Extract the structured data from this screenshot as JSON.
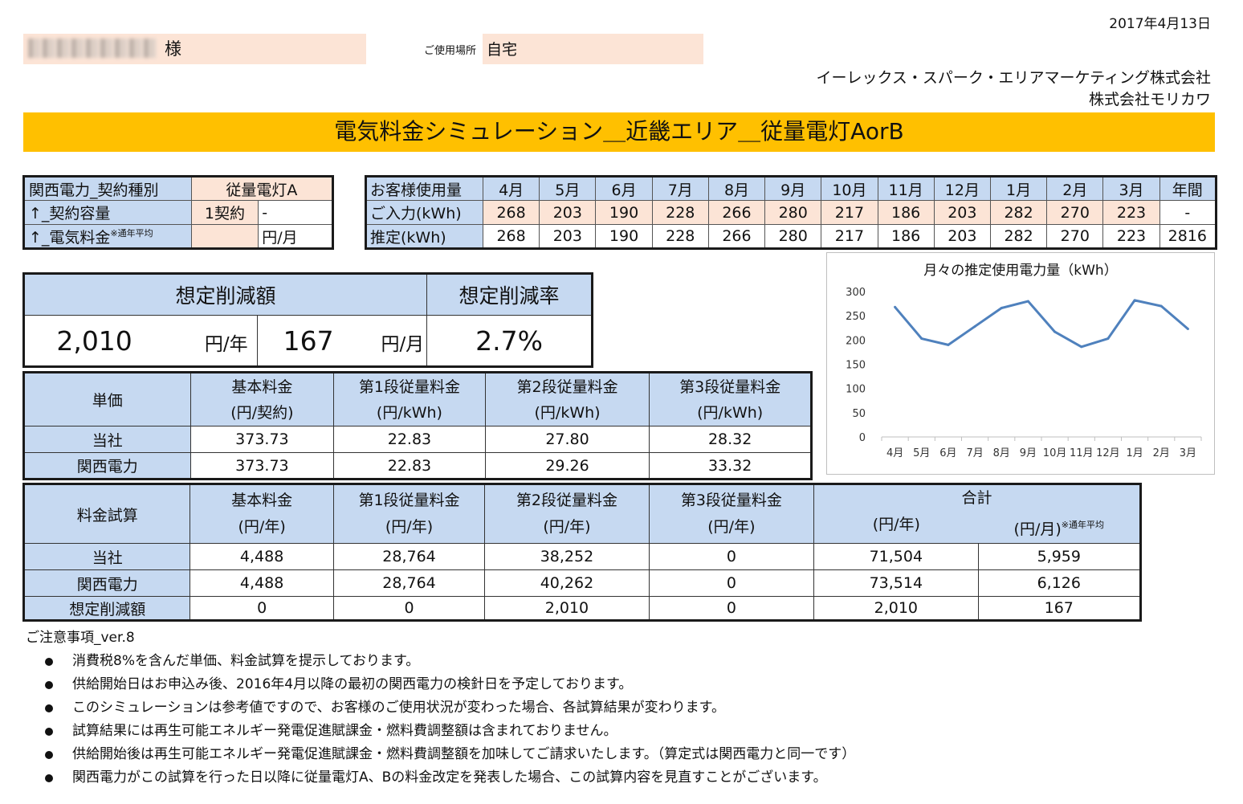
{
  "header": {
    "date": "2017年4月13日",
    "customer_suffix": "様",
    "place_label": "ご使用場所",
    "place_value": "自宅",
    "company_1": "イーレックス・スパーク・エリアマーケティング株式会社",
    "company_2": "株式会社モリカワ",
    "title": "電気料金シミュレーション＿近畿エリア＿従量電灯AorB"
  },
  "contract": {
    "type_label": "関西電力_契約種別",
    "type_value": "従量電灯A",
    "capacity_label": "↑_契約容量",
    "capacity_value": "1契約",
    "capacity_extra": "-",
    "fee_label": "↑_電気料金",
    "fee_note": "※通年平均",
    "fee_value": "",
    "fee_unit": "円/月"
  },
  "usage": {
    "header_label": "お客様使用量",
    "months": [
      "4月",
      "5月",
      "6月",
      "7月",
      "8月",
      "9月",
      "10月",
      "11月",
      "12月",
      "1月",
      "2月",
      "3月",
      "年間"
    ],
    "input_label": "ご入力(kWh)",
    "input_values": [
      "268",
      "203",
      "190",
      "228",
      "266",
      "280",
      "217",
      "186",
      "203",
      "282",
      "270",
      "223",
      "-"
    ],
    "estimate_label": "推定(kWh)",
    "estimate_values": [
      "268",
      "203",
      "190",
      "228",
      "266",
      "280",
      "217",
      "186",
      "203",
      "282",
      "270",
      "223",
      "2816"
    ]
  },
  "savings": {
    "amount_header": "想定削減額",
    "rate_header": "想定削減率",
    "yearly_value": "2,010",
    "yearly_unit": "円/年",
    "monthly_value": "167",
    "monthly_unit": "円/月",
    "rate_value": "2.7%"
  },
  "unit_price": {
    "corner": "単価",
    "headers": [
      {
        "name": "基本料金",
        "unit": "(円/契約)"
      },
      {
        "name": "第1段従量料金",
        "unit": "(円/kWh)"
      },
      {
        "name": "第2段従量料金",
        "unit": "(円/kWh)"
      },
      {
        "name": "第3段従量料金",
        "unit": "(円/kWh)"
      }
    ],
    "rows": [
      {
        "label": "当社",
        "values": [
          "373.73",
          "22.83",
          "27.80",
          "28.32"
        ]
      },
      {
        "label": "関西電力",
        "values": [
          "373.73",
          "22.83",
          "29.26",
          "33.32"
        ]
      }
    ]
  },
  "fee_calc": {
    "corner": "料金試算",
    "headers": [
      {
        "name": "基本料金",
        "unit": "(円/年)"
      },
      {
        "name": "第1段従量料金",
        "unit": "(円/年)"
      },
      {
        "name": "第2段従量料金",
        "unit": "(円/年)"
      },
      {
        "name": "第3段従量料金",
        "unit": "(円/年)"
      }
    ],
    "total_header": "合計",
    "total_unit_year": "(円/年)",
    "total_unit_month": "(円/月)",
    "total_note": "※通年平均",
    "rows": [
      {
        "label": "当社",
        "values": [
          "4,488",
          "28,764",
          "38,252",
          "0",
          "71,504",
          "5,959"
        ]
      },
      {
        "label": "関西電力",
        "values": [
          "4,488",
          "28,764",
          "40,262",
          "0",
          "73,514",
          "6,126"
        ]
      },
      {
        "label": "想定削減額",
        "values": [
          "0",
          "0",
          "2,010",
          "0",
          "2,010",
          "167"
        ]
      }
    ]
  },
  "chart_data": {
    "type": "line",
    "title": "月々の推定使用電力量（kWh）",
    "categories": [
      "4月",
      "5月",
      "6月",
      "7月",
      "8月",
      "9月",
      "10月",
      "11月",
      "12月",
      "1月",
      "2月",
      "3月"
    ],
    "values": [
      268,
      203,
      190,
      228,
      266,
      280,
      217,
      186,
      203,
      282,
      270,
      223
    ],
    "ylim": [
      0,
      300
    ],
    "yticks": [
      "0",
      "50",
      "100",
      "150",
      "200",
      "250",
      "300"
    ],
    "grid": false,
    "legend": "none",
    "line_color": "#4f81bd"
  },
  "notes": {
    "title": "ご注意事項_ver.8",
    "items": [
      "消費税8%を含んだ単価、料金試算を提示しております。",
      "供給開始日はお申込み後、2016年4月以降の最初の関西電力の検針日を予定しております。",
      "このシミュレーションは参考値ですので、お客様のご使用状況が変わった場合、各試算結果が変わります。",
      "試算結果には再生可能エネルギー発電促進賦課金・燃料費調整額は含まれておりません。",
      "供給開始後は再生可能エネルギー発電促進賦課金・燃料費調整額を加味してご請求いたします。（算定式は関西電力と同一です）",
      "関西電力がこの試算を行った日以降に従量電灯A、Bの料金改定を発表した場合、この試算内容を見直すことがございます。"
    ]
  }
}
